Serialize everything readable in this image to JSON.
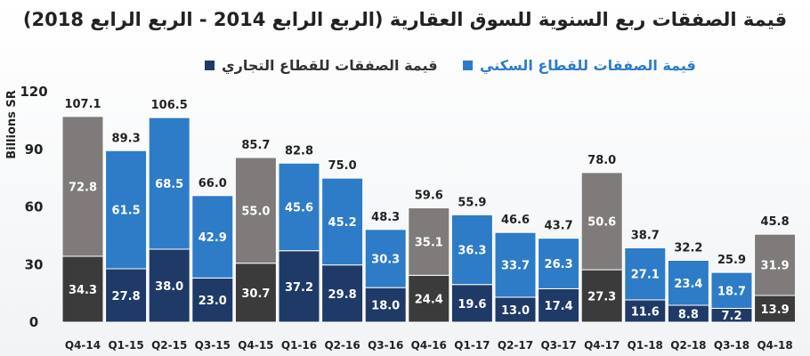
{
  "chart_data": {
    "type": "bar",
    "stacked": true,
    "title": "قيمة الصفقات ربع السنوية للسوق العقارية (الربع الرابع 2014 - الربع الرابع 2018)",
    "ylabel": "Billions SR",
    "ylim": [
      0,
      120
    ],
    "yticks": [
      0,
      30,
      60,
      90,
      120
    ],
    "categories": [
      "Q4-14",
      "Q1-15",
      "Q2-15",
      "Q3-15",
      "Q4-15",
      "Q1-16",
      "Q2-16",
      "Q3-16",
      "Q4-16",
      "Q1-17",
      "Q2-17",
      "Q3-17",
      "Q4-17",
      "Q1-18",
      "Q2-18",
      "Q3-18",
      "Q4-18"
    ],
    "series": [
      {
        "name": "قيمة الصفقات للقطاع التجاري",
        "color": "#1f3a66",
        "q4_color": "#3b3b3b",
        "values": [
          34.3,
          27.8,
          38.0,
          23.0,
          30.7,
          37.2,
          29.8,
          18.0,
          24.4,
          19.6,
          13.0,
          17.4,
          27.3,
          11.6,
          8.8,
          7.2,
          13.9
        ]
      },
      {
        "name": "قيمة الصفقات للقطاع السكني",
        "color": "#2e7cc7",
        "q4_color": "#7f7b7b",
        "values": [
          72.8,
          61.5,
          68.5,
          42.9,
          55.0,
          45.6,
          45.2,
          30.3,
          35.1,
          36.3,
          33.7,
          26.3,
          50.6,
          27.1,
          23.4,
          18.7,
          31.9
        ]
      }
    ],
    "totals": [
      "107.1",
      "89.3",
      "106.5",
      "66.0",
      "85.7",
      "82.8",
      "75.0",
      "48.3",
      "59.6",
      "55.9",
      "46.6",
      "43.7",
      "78.0",
      "38.7",
      "32.2",
      "25.9",
      "45.8"
    ],
    "legend": "top"
  }
}
